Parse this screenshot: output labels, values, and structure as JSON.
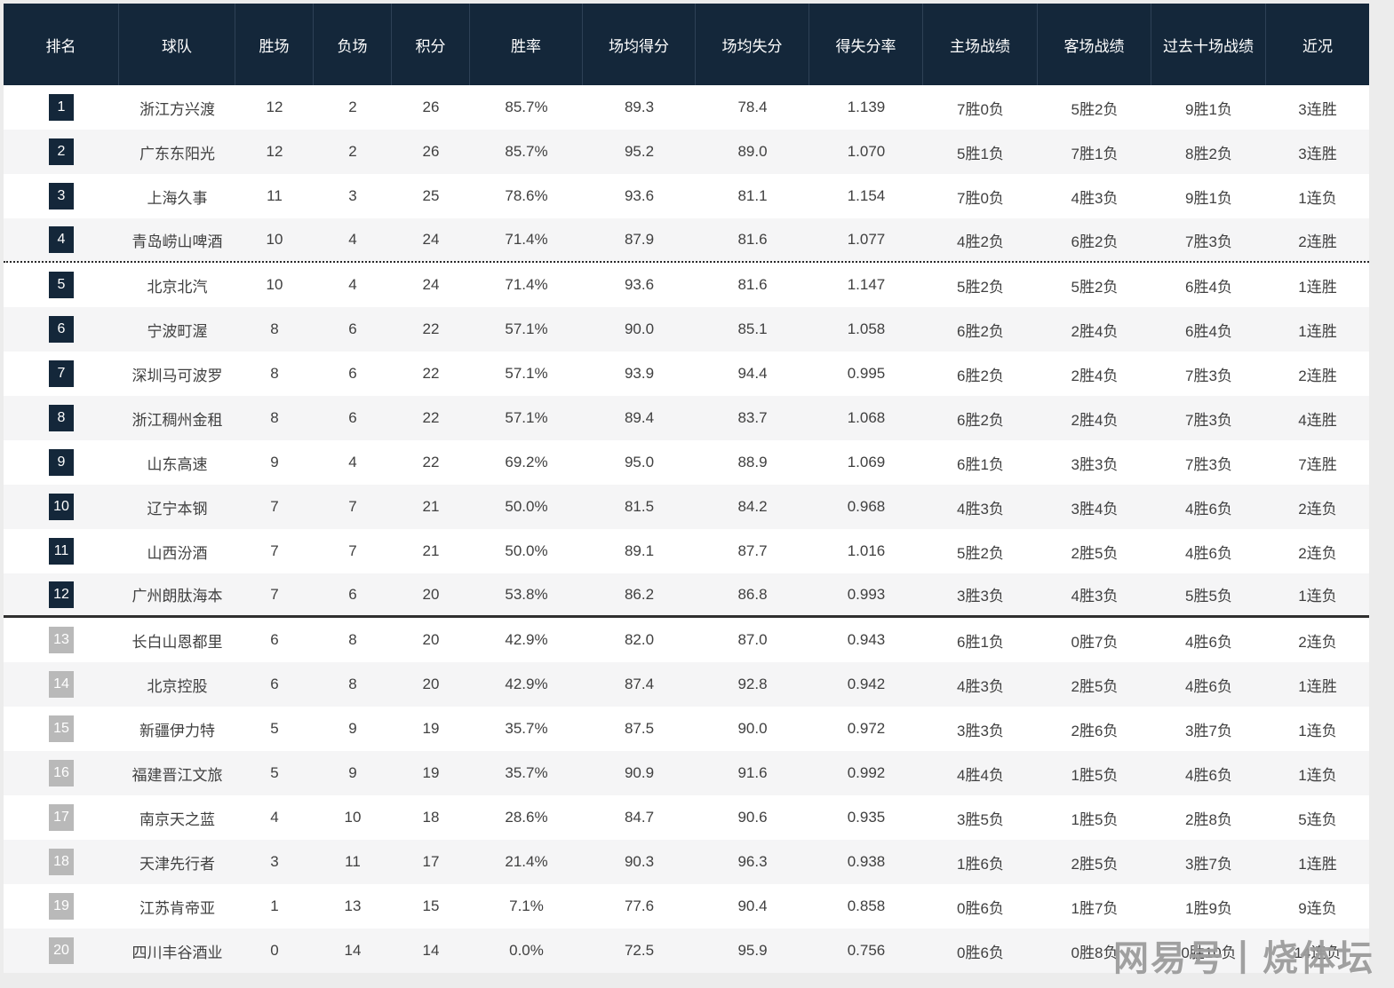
{
  "page": {
    "watermark": "网易号丨烧体坛"
  },
  "colors": {
    "header_bg": "#14273a",
    "header_separator": "#2e4156",
    "badge_dark": "#14273a",
    "badge_gray": "#b9b9b9",
    "row_alt": "#f5f5f6",
    "text": "#404040",
    "divider": "#2a2a2a",
    "watermark": "#9c9c9c"
  },
  "chart_data": {
    "type": "table",
    "title": "",
    "columns": [
      "排名",
      "球队",
      "胜场",
      "负场",
      "积分",
      "胜率",
      "场均得分",
      "场均失分",
      "得失分率",
      "主场战绩",
      "客场战绩",
      "过去十场战绩",
      "近况"
    ],
    "divider_dotted_after_rank": 4,
    "divider_solid_after_rank": 12,
    "gray_badge_from_rank": 13,
    "rows": [
      [
        1,
        "浙江方兴渡",
        "12",
        "2",
        "26",
        "85.7%",
        "89.3",
        "78.4",
        "1.139",
        "7胜0负",
        "5胜2负",
        "9胜1负",
        "3连胜"
      ],
      [
        2,
        "广东东阳光",
        "12",
        "2",
        "26",
        "85.7%",
        "95.2",
        "89.0",
        "1.070",
        "5胜1负",
        "7胜1负",
        "8胜2负",
        "3连胜"
      ],
      [
        3,
        "上海久事",
        "11",
        "3",
        "25",
        "78.6%",
        "93.6",
        "81.1",
        "1.154",
        "7胜0负",
        "4胜3负",
        "9胜1负",
        "1连负"
      ],
      [
        4,
        "青岛崂山啤酒",
        "10",
        "4",
        "24",
        "71.4%",
        "87.9",
        "81.6",
        "1.077",
        "4胜2负",
        "6胜2负",
        "7胜3负",
        "2连胜"
      ],
      [
        5,
        "北京北汽",
        "10",
        "4",
        "24",
        "71.4%",
        "93.6",
        "81.6",
        "1.147",
        "5胜2负",
        "5胜2负",
        "6胜4负",
        "1连胜"
      ],
      [
        6,
        "宁波町渥",
        "8",
        "6",
        "22",
        "57.1%",
        "90.0",
        "85.1",
        "1.058",
        "6胜2负",
        "2胜4负",
        "6胜4负",
        "1连胜"
      ],
      [
        7,
        "深圳马可波罗",
        "8",
        "6",
        "22",
        "57.1%",
        "93.9",
        "94.4",
        "0.995",
        "6胜2负",
        "2胜4负",
        "7胜3负",
        "2连胜"
      ],
      [
        8,
        "浙江稠州金租",
        "8",
        "6",
        "22",
        "57.1%",
        "89.4",
        "83.7",
        "1.068",
        "6胜2负",
        "2胜4负",
        "7胜3负",
        "4连胜"
      ],
      [
        9,
        "山东高速",
        "9",
        "4",
        "22",
        "69.2%",
        "95.0",
        "88.9",
        "1.069",
        "6胜1负",
        "3胜3负",
        "7胜3负",
        "7连胜"
      ],
      [
        10,
        "辽宁本钢",
        "7",
        "7",
        "21",
        "50.0%",
        "81.5",
        "84.2",
        "0.968",
        "4胜3负",
        "3胜4负",
        "4胜6负",
        "2连负"
      ],
      [
        11,
        "山西汾酒",
        "7",
        "7",
        "21",
        "50.0%",
        "89.1",
        "87.7",
        "1.016",
        "5胜2负",
        "2胜5负",
        "4胜6负",
        "2连负"
      ],
      [
        12,
        "广州朗肽海本",
        "7",
        "6",
        "20",
        "53.8%",
        "86.2",
        "86.8",
        "0.993",
        "3胜3负",
        "4胜3负",
        "5胜5负",
        "1连负"
      ],
      [
        13,
        "长白山恩都里",
        "6",
        "8",
        "20",
        "42.9%",
        "82.0",
        "87.0",
        "0.943",
        "6胜1负",
        "0胜7负",
        "4胜6负",
        "2连负"
      ],
      [
        14,
        "北京控股",
        "6",
        "8",
        "20",
        "42.9%",
        "87.4",
        "92.8",
        "0.942",
        "4胜3负",
        "2胜5负",
        "4胜6负",
        "1连胜"
      ],
      [
        15,
        "新疆伊力特",
        "5",
        "9",
        "19",
        "35.7%",
        "87.5",
        "90.0",
        "0.972",
        "3胜3负",
        "2胜6负",
        "3胜7负",
        "1连负"
      ],
      [
        16,
        "福建晋江文旅",
        "5",
        "9",
        "19",
        "35.7%",
        "90.9",
        "91.6",
        "0.992",
        "4胜4负",
        "1胜5负",
        "4胜6负",
        "1连负"
      ],
      [
        17,
        "南京天之蓝",
        "4",
        "10",
        "18",
        "28.6%",
        "84.7",
        "90.6",
        "0.935",
        "3胜5负",
        "1胜5负",
        "2胜8负",
        "5连负"
      ],
      [
        18,
        "天津先行者",
        "3",
        "11",
        "17",
        "21.4%",
        "90.3",
        "96.3",
        "0.938",
        "1胜6负",
        "2胜5负",
        "3胜7负",
        "1连胜"
      ],
      [
        19,
        "江苏肯帝亚",
        "1",
        "13",
        "15",
        "7.1%",
        "77.6",
        "90.4",
        "0.858",
        "0胜6负",
        "1胜7负",
        "1胜9负",
        "9连负"
      ],
      [
        20,
        "四川丰谷酒业",
        "0",
        "14",
        "14",
        "0.0%",
        "72.5",
        "95.9",
        "0.756",
        "0胜6负",
        "0胜8负",
        "0胜10负",
        "14连负"
      ]
    ]
  }
}
